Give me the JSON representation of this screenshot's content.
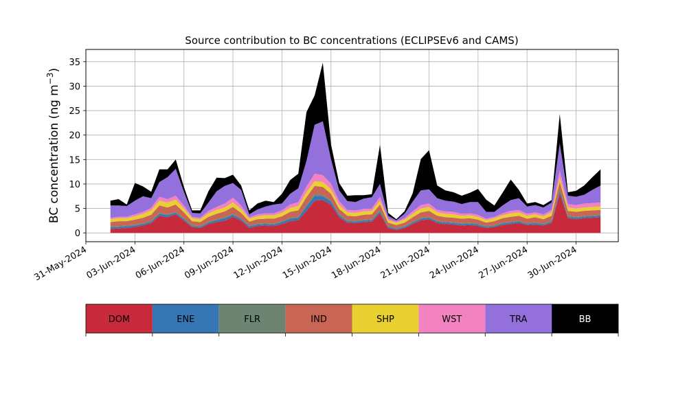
{
  "chart_data": {
    "type": "area",
    "stacked": true,
    "title": "Source contribution to BC concentrations (ECLIPSEv6 and CAMS)",
    "ylabel_main": "BC concentration (ng m",
    "ylabel_sup": "−3",
    "ylabel_end": ")",
    "xlabel": "",
    "ylim": [
      -1.8,
      37.5
    ],
    "xlim": [
      "2024-05-31T00:00",
      "2024-07-02T14:00"
    ],
    "yticks": [
      0,
      5,
      10,
      15,
      20,
      25,
      30,
      35
    ],
    "xticks": [
      {
        "date": "2024-05-31",
        "label": "31-May-2024"
      },
      {
        "date": "2024-06-03",
        "label": "03-Jun-2024"
      },
      {
        "date": "2024-06-06",
        "label": "06-Jun-2024"
      },
      {
        "date": "2024-06-09",
        "label": "09-Jun-2024"
      },
      {
        "date": "2024-06-12",
        "label": "12-Jun-2024"
      },
      {
        "date": "2024-06-15",
        "label": "15-Jun-2024"
      },
      {
        "date": "2024-06-18",
        "label": "18-Jun-2024"
      },
      {
        "date": "2024-06-21",
        "label": "21-Jun-2024"
      },
      {
        "date": "2024-06-24",
        "label": "24-Jun-2024"
      },
      {
        "date": "2024-06-27",
        "label": "27-Jun-2024"
      },
      {
        "date": "2024-06-30",
        "label": "30-Jun-2024"
      }
    ],
    "grid": true,
    "legend_position": "below",
    "x": [
      "2024-06-01T12:00",
      "2024-06-02T00:00",
      "2024-06-02T12:00",
      "2024-06-03T00:00",
      "2024-06-03T12:00",
      "2024-06-04T00:00",
      "2024-06-04T12:00",
      "2024-06-05T00:00",
      "2024-06-05T12:00",
      "2024-06-06T00:00",
      "2024-06-06T12:00",
      "2024-06-07T00:00",
      "2024-06-07T12:00",
      "2024-06-08T00:00",
      "2024-06-08T12:00",
      "2024-06-09T00:00",
      "2024-06-09T12:00",
      "2024-06-10T00:00",
      "2024-06-10T12:00",
      "2024-06-11T00:00",
      "2024-06-11T12:00",
      "2024-06-12T00:00",
      "2024-06-12T12:00",
      "2024-06-13T00:00",
      "2024-06-13T12:00",
      "2024-06-14T00:00",
      "2024-06-14T12:00",
      "2024-06-15T00:00",
      "2024-06-15T12:00",
      "2024-06-16T00:00",
      "2024-06-16T12:00",
      "2024-06-17T00:00",
      "2024-06-17T12:00",
      "2024-06-18T00:00",
      "2024-06-18T12:00",
      "2024-06-19T00:00",
      "2024-06-19T12:00",
      "2024-06-20T00:00",
      "2024-06-20T12:00",
      "2024-06-21T00:00",
      "2024-06-21T12:00",
      "2024-06-22T00:00",
      "2024-06-22T12:00",
      "2024-06-23T00:00",
      "2024-06-23T12:00",
      "2024-06-24T00:00",
      "2024-06-24T12:00",
      "2024-06-25T00:00",
      "2024-06-25T12:00",
      "2024-06-26T00:00",
      "2024-06-26T12:00",
      "2024-06-27T00:00",
      "2024-06-27T12:00",
      "2024-06-28T00:00",
      "2024-06-28T12:00",
      "2024-06-29T00:00",
      "2024-06-29T12:00",
      "2024-06-30T00:00",
      "2024-06-30T12:00",
      "2024-07-01T00:00",
      "2024-07-01T12:00"
    ],
    "series": [
      {
        "name": "DOM",
        "color": "#c72a3a",
        "values": [
          0.8,
          0.9,
          1.0,
          1.2,
          1.5,
          2.0,
          3.5,
          3.2,
          3.8,
          2.5,
          1.2,
          1.0,
          1.8,
          2.2,
          2.5,
          3.3,
          2.5,
          1.0,
          1.4,
          1.5,
          1.4,
          1.8,
          2.4,
          2.6,
          4.5,
          6.6,
          6.7,
          5.8,
          3.2,
          2.1,
          2.0,
          2.2,
          2.3,
          4.0,
          1.0,
          0.6,
          1.0,
          1.8,
          2.6,
          2.8,
          2.0,
          1.8,
          1.7,
          1.5,
          1.6,
          1.4,
          1.0,
          1.2,
          1.6,
          1.8,
          2.0,
          1.6,
          1.7,
          1.5,
          2.0,
          8.0,
          3.0,
          2.8,
          3.0,
          3.1,
          3.2
        ]
      },
      {
        "name": "ENE",
        "color": "#3776b4",
        "values": [
          0.3,
          0.3,
          0.3,
          0.3,
          0.3,
          0.3,
          0.4,
          0.4,
          0.3,
          0.3,
          0.2,
          0.2,
          0.3,
          0.4,
          0.5,
          0.4,
          0.3,
          0.3,
          0.3,
          0.3,
          0.3,
          0.4,
          0.5,
          0.5,
          0.9,
          1.0,
          0.8,
          0.6,
          0.4,
          0.3,
          0.3,
          0.3,
          0.3,
          0.4,
          0.2,
          0.2,
          0.2,
          0.3,
          0.3,
          0.3,
          0.3,
          0.3,
          0.3,
          0.3,
          0.3,
          0.3,
          0.2,
          0.2,
          0.3,
          0.3,
          0.3,
          0.2,
          0.3,
          0.2,
          0.3,
          0.6,
          0.3,
          0.3,
          0.3,
          0.3,
          0.3
        ]
      },
      {
        "name": "FLR",
        "color": "#6e8472",
        "values": [
          0.2,
          0.2,
          0.2,
          0.2,
          0.2,
          0.2,
          0.2,
          0.2,
          0.2,
          0.2,
          0.2,
          0.2,
          0.2,
          0.2,
          0.2,
          0.2,
          0.2,
          0.2,
          0.2,
          0.2,
          0.2,
          0.2,
          0.2,
          0.2,
          0.3,
          0.3,
          0.3,
          0.2,
          0.2,
          0.2,
          0.2,
          0.2,
          0.2,
          0.2,
          0.2,
          0.2,
          0.2,
          0.2,
          0.2,
          0.2,
          0.2,
          0.2,
          0.2,
          0.2,
          0.2,
          0.2,
          0.2,
          0.2,
          0.2,
          0.2,
          0.2,
          0.2,
          0.2,
          0.2,
          0.2,
          0.3,
          0.2,
          0.2,
          0.2,
          0.2,
          0.2
        ]
      },
      {
        "name": "IND",
        "color": "#c86554",
        "values": [
          0.9,
          1.0,
          0.9,
          1.0,
          1.1,
          1.2,
          1.5,
          1.4,
          1.5,
          1.2,
          0.8,
          0.8,
          1.0,
          1.1,
          1.2,
          1.4,
          1.1,
          0.8,
          0.9,
          0.9,
          1.0,
          1.0,
          1.2,
          1.3,
          1.6,
          1.7,
          1.6,
          1.4,
          1.1,
          0.9,
          0.9,
          1.0,
          1.0,
          1.2,
          0.7,
          0.6,
          0.7,
          0.9,
          1.1,
          1.2,
          1.0,
          0.9,
          0.9,
          0.9,
          0.9,
          0.8,
          0.7,
          0.8,
          0.9,
          1.0,
          1.0,
          0.9,
          1.0,
          0.9,
          1.0,
          1.5,
          1.0,
          1.0,
          1.0,
          1.0,
          1.0
        ]
      },
      {
        "name": "SHP",
        "color": "#e7d02f",
        "values": [
          0.6,
          0.6,
          0.6,
          0.7,
          0.8,
          0.9,
          1.0,
          1.0,
          1.0,
          0.8,
          0.6,
          0.6,
          0.7,
          0.8,
          0.8,
          0.9,
          0.8,
          0.6,
          0.6,
          0.7,
          0.7,
          0.7,
          0.8,
          0.9,
          1.0,
          1.0,
          1.0,
          0.9,
          0.8,
          0.7,
          0.7,
          0.7,
          0.7,
          0.8,
          0.5,
          0.5,
          0.6,
          0.7,
          0.8,
          0.8,
          0.7,
          0.7,
          0.7,
          0.6,
          0.6,
          0.6,
          0.5,
          0.6,
          0.6,
          0.7,
          0.7,
          0.6,
          0.6,
          0.6,
          0.7,
          0.9,
          0.7,
          0.7,
          0.7,
          0.7,
          0.7
        ]
      },
      {
        "name": "WST",
        "color": "#f283c0",
        "values": [
          0.3,
          0.3,
          0.3,
          0.4,
          0.4,
          0.5,
          0.8,
          0.7,
          0.8,
          0.6,
          0.3,
          0.3,
          0.5,
          0.6,
          0.8,
          1.0,
          0.7,
          0.3,
          0.4,
          0.4,
          0.4,
          0.5,
          0.7,
          0.8,
          1.2,
          1.5,
          1.4,
          1.2,
          0.8,
          0.5,
          0.5,
          0.5,
          0.5,
          0.8,
          0.3,
          0.2,
          0.3,
          0.5,
          0.7,
          0.7,
          0.5,
          0.5,
          0.5,
          0.4,
          0.4,
          0.4,
          0.3,
          0.3,
          0.4,
          0.5,
          0.5,
          0.4,
          0.4,
          0.4,
          0.5,
          1.5,
          0.7,
          0.7,
          0.8,
          0.8,
          0.8
        ]
      },
      {
        "name": "TRA",
        "color": "#9370db",
        "values": [
          2.5,
          2.3,
          2.2,
          2.8,
          3.2,
          2.0,
          3.0,
          4.5,
          5.5,
          2.8,
          0.8,
          0.9,
          1.7,
          3.2,
          3.6,
          3.0,
          3.2,
          0.6,
          1.0,
          1.4,
          1.8,
          1.4,
          2.2,
          2.8,
          5.2,
          10.0,
          11.0,
          5.0,
          2.2,
          1.8,
          1.7,
          2.1,
          2.3,
          2.6,
          0.6,
          0.3,
          0.9,
          2.0,
          3.0,
          2.9,
          2.4,
          2.2,
          2.1,
          2.0,
          2.3,
          2.6,
          1.4,
          1.0,
          1.6,
          2.2,
          2.4,
          1.5,
          1.5,
          1.4,
          1.5,
          5.5,
          1.7,
          1.7,
          1.8,
          2.7,
          3.5
        ]
      },
      {
        "name": "BB",
        "color": "#000000",
        "values": [
          1.0,
          1.3,
          0.3,
          3.6,
          2.0,
          1.3,
          2.6,
          1.6,
          1.9,
          1.0,
          0.5,
          0.6,
          2.3,
          2.8,
          1.6,
          1.7,
          0.9,
          0.8,
          1.2,
          1.2,
          0.5,
          2.0,
          2.8,
          3.0,
          10.0,
          6.0,
          12.0,
          3.0,
          1.5,
          1.1,
          1.4,
          0.7,
          0.6,
          8.0,
          0.6,
          0.2,
          0.5,
          1.7,
          6.4,
          8.0,
          2.6,
          2.1,
          1.9,
          1.7,
          1.9,
          2.7,
          2.5,
          1.3,
          2.6,
          4.2,
          1.7,
          0.6,
          0.6,
          0.5,
          0.5,
          6.0,
          0.7,
          1.2,
          1.9,
          2.6,
          3.3
        ]
      }
    ]
  },
  "legend": {
    "items": [
      {
        "name": "DOM",
        "color": "#c72a3a",
        "text_color": "#000000"
      },
      {
        "name": "ENE",
        "color": "#3776b4",
        "text_color": "#000000"
      },
      {
        "name": "FLR",
        "color": "#6e8472",
        "text_color": "#000000"
      },
      {
        "name": "IND",
        "color": "#c86554",
        "text_color": "#000000"
      },
      {
        "name": "SHP",
        "color": "#e7d02f",
        "text_color": "#000000"
      },
      {
        "name": "WST",
        "color": "#f283c0",
        "text_color": "#000000"
      },
      {
        "name": "TRA",
        "color": "#9370db",
        "text_color": "#000000"
      },
      {
        "name": "BB",
        "color": "#000000",
        "text_color": "#ffffff"
      }
    ]
  }
}
